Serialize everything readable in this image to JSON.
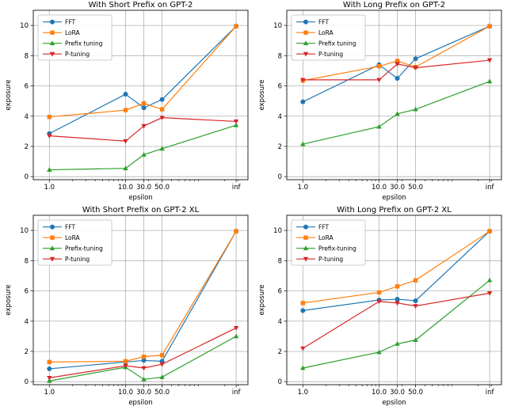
{
  "figure": {
    "background": "#ffffff",
    "grid_color": "#b0b0b0",
    "spine_color": "#262626",
    "tick_color": "#262626",
    "text_color": "#000000",
    "legend_border_color": "#cccccc",
    "legend_background": "#ffffff"
  },
  "chart_data": [
    {
      "id": "short-prefix-gpt2",
      "type": "line",
      "title": "With Short Prefix on GPT-2",
      "xlabel": "epsilon",
      "ylabel": "exposure",
      "x_scale": "log",
      "x_tick_labels": [
        "1.0",
        "10.0",
        "30.0",
        "50.0",
        "inf"
      ],
      "y_ticks": [
        0,
        2,
        4,
        6,
        8,
        10
      ],
      "ylim": [
        -0.2,
        11.0
      ],
      "grid": true,
      "legend_position": "upper left",
      "series": [
        {
          "name": "FFT",
          "color": "#1f77b4",
          "marker": "circle",
          "values": [
            2.85,
            5.45,
            4.55,
            5.1,
            9.95
          ]
        },
        {
          "name": "LoRA",
          "color": "#ff7f0e",
          "marker": "square",
          "values": [
            3.95,
            4.4,
            4.85,
            4.45,
            9.95
          ]
        },
        {
          "name": "Prefix tuning",
          "color": "#2ca02c",
          "marker": "triangle-up",
          "values": [
            0.45,
            0.55,
            1.45,
            1.85,
            3.4
          ]
        },
        {
          "name": "P-tuning",
          "color": "#d62728",
          "marker": "triangle-down",
          "values": [
            2.7,
            2.35,
            3.35,
            3.9,
            3.65
          ]
        }
      ]
    },
    {
      "id": "long-prefix-gpt2",
      "type": "line",
      "title": "With Long Prefix on GPT-2",
      "xlabel": "epsilon",
      "ylabel": "exposure",
      "x_scale": "log",
      "x_tick_labels": [
        "1.0",
        "10.0",
        "30.0",
        "50.0",
        "inf"
      ],
      "y_ticks": [
        0,
        2,
        4,
        6,
        8,
        10
      ],
      "ylim": [
        -0.2,
        11.0
      ],
      "grid": true,
      "legend_position": "upper left",
      "series": [
        {
          "name": "FFT",
          "color": "#1f77b4",
          "marker": "circle",
          "values": [
            4.95,
            7.4,
            6.5,
            7.8,
            9.95
          ]
        },
        {
          "name": "LoRA",
          "color": "#ff7f0e",
          "marker": "square",
          "values": [
            6.35,
            7.3,
            7.65,
            7.25,
            9.95
          ]
        },
        {
          "name": "Prefix tuning",
          "color": "#2ca02c",
          "marker": "triangle-up",
          "values": [
            2.15,
            3.3,
            4.15,
            4.45,
            6.3
          ]
        },
        {
          "name": "P-tuning",
          "color": "#d62728",
          "marker": "triangle-down",
          "values": [
            6.4,
            6.4,
            7.45,
            7.2,
            7.7
          ]
        }
      ]
    },
    {
      "id": "short-prefix-gpt2-xl",
      "type": "line",
      "title": "With Short Prefix on GPT-2 XL",
      "xlabel": "epsilon",
      "ylabel": "exposure",
      "x_scale": "log",
      "x_tick_labels": [
        "1.0",
        "10.0",
        "30.0",
        "50.0",
        "inf"
      ],
      "y_ticks": [
        0,
        2,
        4,
        6,
        8,
        10
      ],
      "ylim": [
        -0.2,
        11.0
      ],
      "grid": true,
      "legend_position": "upper left",
      "series": [
        {
          "name": "FFT",
          "color": "#1f77b4",
          "marker": "circle",
          "values": [
            0.85,
            1.3,
            1.4,
            1.35,
            9.95
          ]
        },
        {
          "name": "LoRA",
          "color": "#ff7f0e",
          "marker": "square",
          "values": [
            1.3,
            1.35,
            1.65,
            1.75,
            9.95
          ]
        },
        {
          "name": "Prefix-tuning",
          "color": "#2ca02c",
          "marker": "triangle-up",
          "values": [
            0.05,
            0.95,
            0.15,
            0.3,
            3.0
          ]
        },
        {
          "name": "P-tuning",
          "color": "#d62728",
          "marker": "triangle-down",
          "values": [
            0.25,
            1.05,
            0.9,
            1.15,
            3.55
          ]
        }
      ]
    },
    {
      "id": "long-prefix-gpt2-xl",
      "type": "line",
      "title": "With Long Prefix on GPT-2 XL",
      "xlabel": "epsilon",
      "ylabel": "exposure",
      "x_scale": "log",
      "x_tick_labels": [
        "1.0",
        "10.0",
        "30.0",
        "50.0",
        "inf"
      ],
      "y_ticks": [
        0,
        2,
        4,
        6,
        8,
        10
      ],
      "ylim": [
        -0.2,
        11.0
      ],
      "grid": true,
      "legend_position": "upper left",
      "series": [
        {
          "name": "FFT",
          "color": "#1f77b4",
          "marker": "circle",
          "values": [
            4.7,
            5.4,
            5.45,
            5.35,
            9.95
          ]
        },
        {
          "name": "LoRA",
          "color": "#ff7f0e",
          "marker": "square",
          "values": [
            5.2,
            5.9,
            6.3,
            6.7,
            9.95
          ]
        },
        {
          "name": "Prefix-tuning",
          "color": "#2ca02c",
          "marker": "triangle-up",
          "values": [
            0.9,
            1.95,
            2.5,
            2.75,
            6.7
          ]
        },
        {
          "name": "P-tuning",
          "color": "#d62728",
          "marker": "triangle-down",
          "values": [
            2.2,
            5.3,
            5.2,
            5.0,
            5.85
          ]
        }
      ]
    }
  ]
}
